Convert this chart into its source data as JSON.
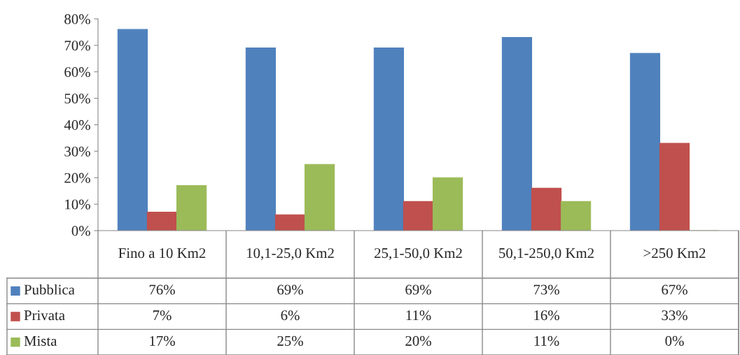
{
  "chart_data": {
    "type": "bar",
    "categories": [
      "Fino a 10 Km2",
      "10,1-25,0 Km2",
      "25,1-50,0 Km2",
      "50,1-250,0 Km2",
      ">250 Km2"
    ],
    "series": [
      {
        "name": "Pubblica",
        "color": "#4f81bd",
        "values": [
          76,
          69,
          69,
          73,
          67
        ],
        "value_labels": [
          "76%",
          "69%",
          "69%",
          "73%",
          "67%"
        ]
      },
      {
        "name": "Privata",
        "color": "#c0504d",
        "values": [
          7,
          6,
          11,
          16,
          33
        ],
        "value_labels": [
          "7%",
          "6%",
          "11%",
          "16%",
          "33%"
        ]
      },
      {
        "name": "Mista",
        "color": "#9bbb59",
        "values": [
          17,
          25,
          20,
          11,
          0
        ],
        "value_labels": [
          "17%",
          "25%",
          "20%",
          "11%",
          "0%"
        ]
      }
    ],
    "ylim": [
      0,
      80
    ],
    "yticks": [
      {
        "value": 0,
        "label": "0%"
      },
      {
        "value": 10,
        "label": "10%"
      },
      {
        "value": 20,
        "label": "20%"
      },
      {
        "value": 30,
        "label": "30%"
      },
      {
        "value": 40,
        "label": "40%"
      },
      {
        "value": 50,
        "label": "50%"
      },
      {
        "value": 60,
        "label": "60%"
      },
      {
        "value": 70,
        "label": "70%"
      },
      {
        "value": 80,
        "label": "80%"
      }
    ],
    "grid": false,
    "legend": "bottom"
  }
}
